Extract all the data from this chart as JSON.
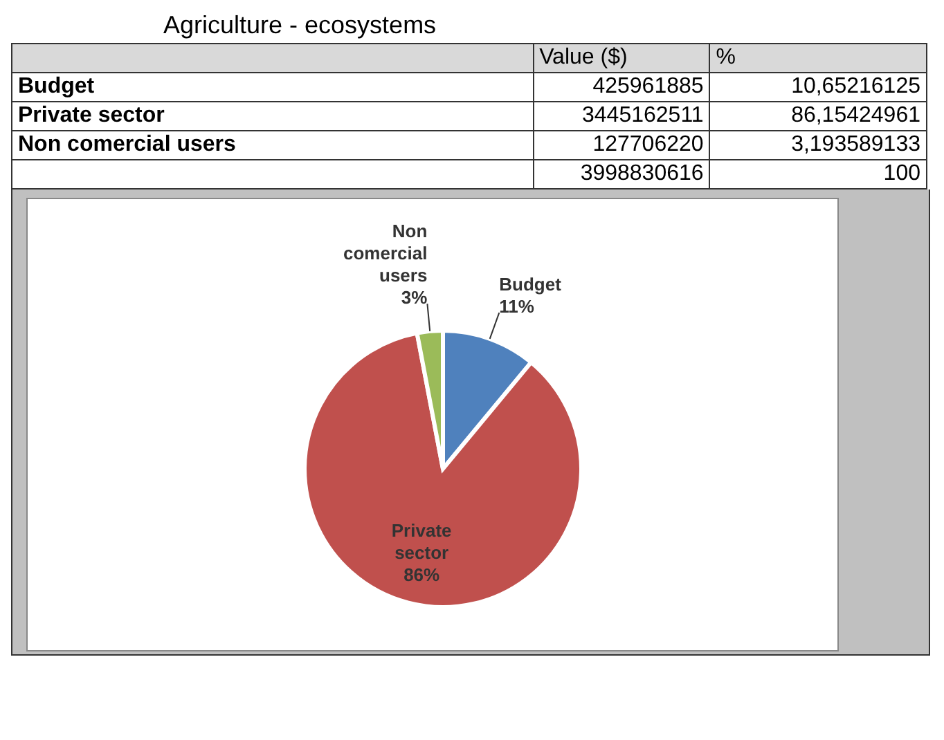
{
  "chart_data": {
    "type": "pie",
    "title": "Agriculture - ecosystems",
    "categories": [
      "Budget",
      "Private sector",
      "Non comercial users"
    ],
    "values": [
      11,
      86,
      3
    ],
    "colors": [
      "#4f81bd",
      "#c0504d",
      "#9bbb59"
    ],
    "value_labels": [
      "11%",
      "86%",
      "3%"
    ],
    "annotations": [
      "Value ($)",
      "%",
      "425961885",
      "10,65216125",
      "3445162511",
      "86,15424961",
      "127706220",
      "3,193589133",
      "3998830616",
      "100"
    ]
  }
}
